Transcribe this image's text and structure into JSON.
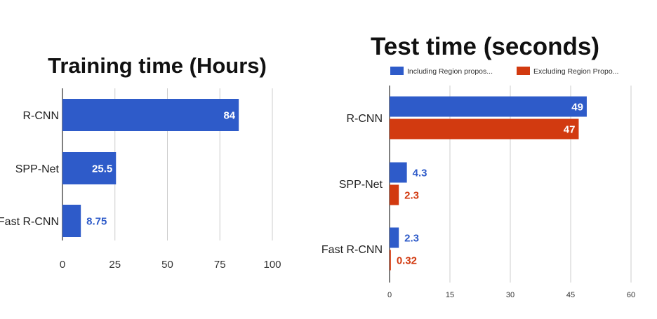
{
  "colors": {
    "blue": "#2e5bc9",
    "red": "#d23a10",
    "grid": "#cccccc",
    "axis": "#555555"
  },
  "chart_data": [
    {
      "type": "bar",
      "orientation": "horizontal",
      "title": "Training time (Hours)",
      "categories": [
        "R-CNN",
        "SPP-Net",
        "Fast R-CNN"
      ],
      "series": [
        {
          "values": [
            84,
            25.5,
            8.75
          ],
          "labels": [
            "84",
            "25.5",
            "8.75"
          ],
          "color": "#2e5bc9"
        }
      ],
      "xlim": [
        0,
        100
      ],
      "xticks": [
        "0",
        "25",
        "50",
        "75",
        "100"
      ],
      "grid": true,
      "legend": "none"
    },
    {
      "type": "bar",
      "orientation": "horizontal",
      "title": "Test time (seconds)",
      "categories": [
        "R-CNN",
        "SPP-Net",
        "Fast R-CNN"
      ],
      "series": [
        {
          "name": "Including Region propos...",
          "values": [
            49,
            4.3,
            2.3
          ],
          "labels": [
            "49",
            "4.3",
            "2.3"
          ],
          "color": "#2e5bc9"
        },
        {
          "name": "Excluding Region Propo...",
          "values": [
            47,
            2.3,
            0.32
          ],
          "labels": [
            "47",
            "2.3",
            "0.32"
          ],
          "color": "#d23a10"
        }
      ],
      "xlim": [
        0,
        60
      ],
      "xticks": [
        "0",
        "15",
        "30",
        "45",
        "60"
      ],
      "grid": true,
      "legend": "top"
    }
  ]
}
